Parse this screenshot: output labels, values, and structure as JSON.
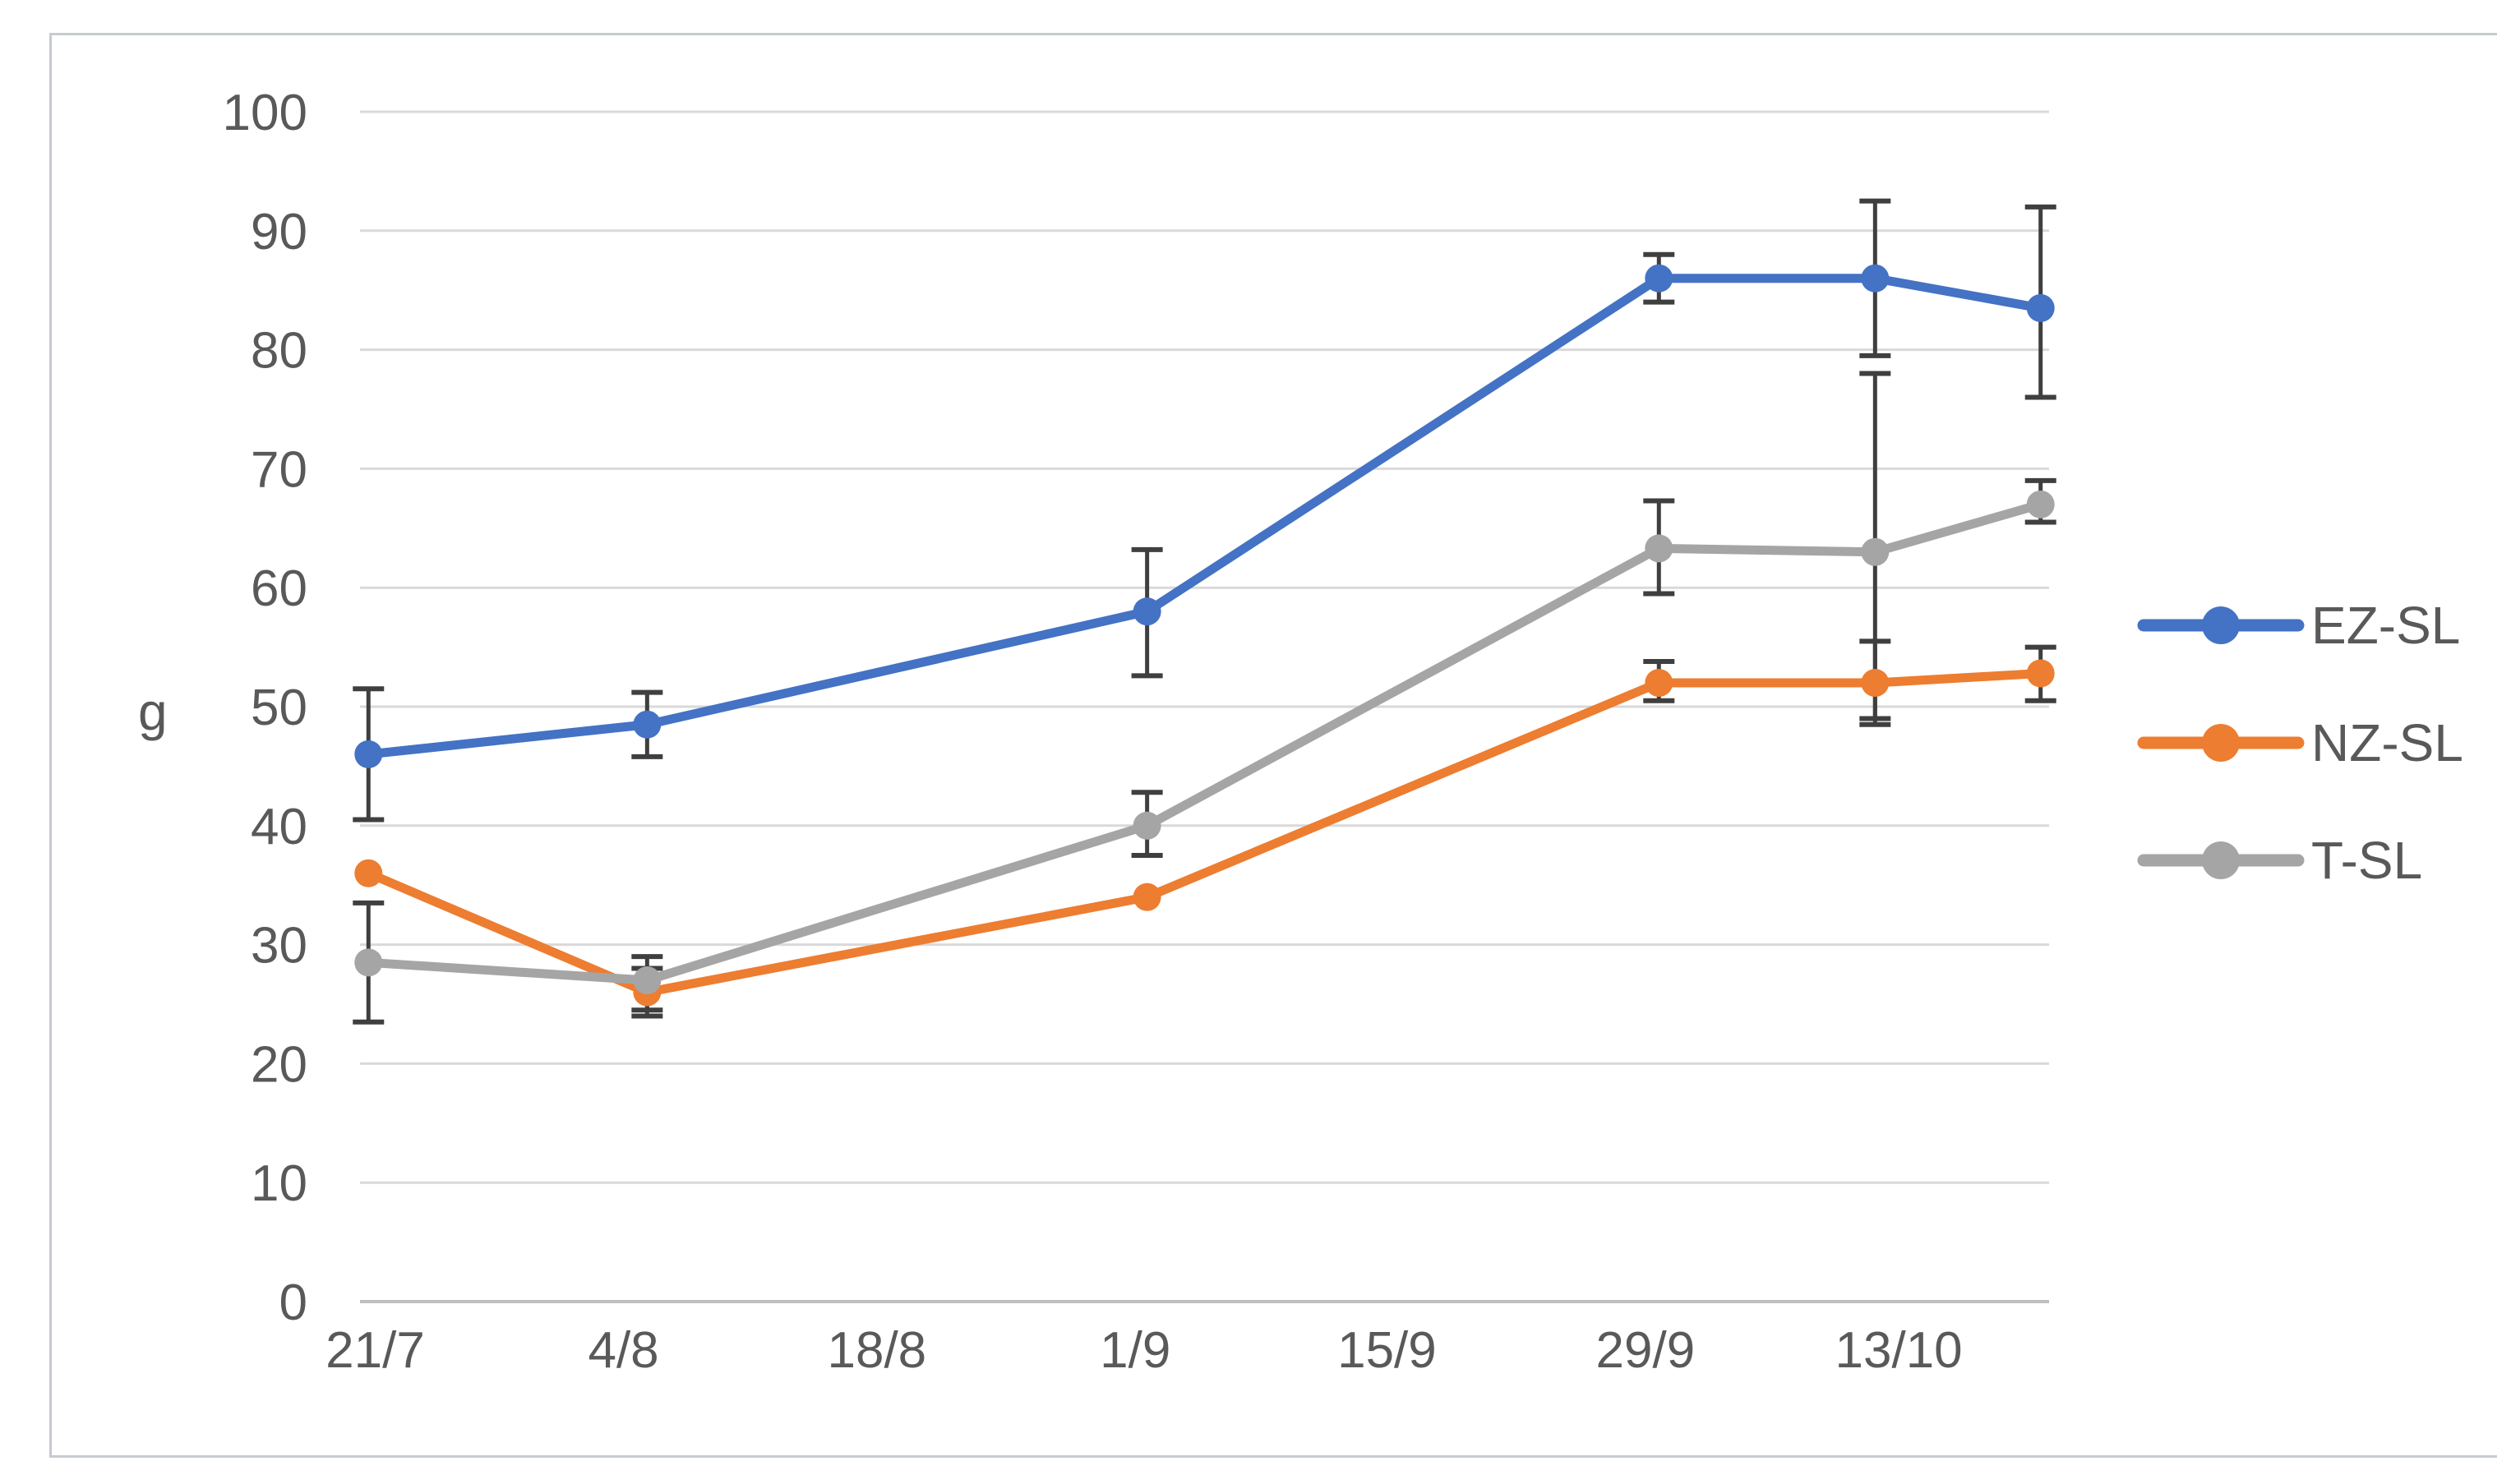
{
  "chart_data": {
    "type": "line",
    "title": "",
    "xlabel": "",
    "ylabel": "g",
    "grid": true,
    "legend_position": "right-middle",
    "y_axis": {
      "min": 0,
      "max": 100,
      "step": 10,
      "tick_labels": [
        "100",
        "90",
        "80",
        "70",
        "60",
        "50",
        "40",
        "30",
        "20",
        "10",
        "0"
      ]
    },
    "x_axis": {
      "tick_labels": [
        "21/7",
        "4/8",
        "18/8",
        "1/9",
        "15/9",
        "29/9",
        "13/10"
      ],
      "tick_positions": [
        0.009,
        0.156,
        0.306,
        0.459,
        0.608,
        0.761,
        0.911
      ]
    },
    "series": [
      {
        "name": "EZ-SL",
        "color": "#4472C4",
        "points": [
          {
            "x": 0.005,
            "date": "21/7",
            "value": 46,
            "err_high": 51.5,
            "err_low": 40.5
          },
          {
            "x": 0.17,
            "date": "4/8",
            "value": 48.5,
            "err_high": 51.2,
            "err_low": 45.8
          },
          {
            "x": 0.466,
            "date": "1/9",
            "value": 58,
            "err_high": 63.2,
            "err_low": 52.6
          },
          {
            "x": 0.769,
            "date": "29/9",
            "value": 86,
            "err_high": 88,
            "err_low": 84
          },
          {
            "x": 0.897,
            "date": "13/10",
            "value": 86,
            "err_high": 92.5,
            "err_low": 79.5
          },
          {
            "x": 0.995,
            "date": "",
            "value": 83.5,
            "err_high": 92,
            "err_low": 76
          }
        ]
      },
      {
        "name": "NZ-SL",
        "color": "#ED7D31",
        "points": [
          {
            "x": 0.005,
            "date": "21/7",
            "value": 36,
            "err_high": null,
            "err_low": null
          },
          {
            "x": 0.17,
            "date": "4/8",
            "value": 26,
            "err_high": 28,
            "err_low": 24
          },
          {
            "x": 0.466,
            "date": "1/9",
            "value": 34,
            "err_high": null,
            "err_low": null
          },
          {
            "x": 0.769,
            "date": "29/9",
            "value": 52,
            "err_high": 53.8,
            "err_low": 50.5
          },
          {
            "x": 0.897,
            "date": "13/10",
            "value": 52,
            "err_high": 55.5,
            "err_low": 48.5
          },
          {
            "x": 0.995,
            "date": "",
            "value": 52.8,
            "err_high": 55,
            "err_low": 50.5
          }
        ]
      },
      {
        "name": "T-SL",
        "color": "#A5A5A5",
        "points": [
          {
            "x": 0.005,
            "date": "21/7",
            "value": 28.5,
            "err_high": 33.5,
            "err_low": 23.5
          },
          {
            "x": 0.17,
            "date": "4/8",
            "value": 27,
            "err_high": 29,
            "err_low": 24.5
          },
          {
            "x": 0.466,
            "date": "1/9",
            "value": 40,
            "err_high": 42.8,
            "err_low": 37.5
          },
          {
            "x": 0.769,
            "date": "29/9",
            "value": 63.3,
            "err_high": 67.3,
            "err_low": 59.5
          },
          {
            "x": 0.897,
            "date": "13/10",
            "value": 63,
            "err_high": 78,
            "err_low": 49
          },
          {
            "x": 0.995,
            "date": "",
            "value": 67,
            "err_high": 69,
            "err_low": 65.5
          }
        ]
      }
    ],
    "style": {
      "gridline_color": "#D9D9D9",
      "axis_line_color": "#BFBFBF",
      "tick_label_color": "#595959",
      "legend_text_color": "#595959",
      "error_bar_color": "#3F3F3F",
      "background": "#FFFFFF",
      "border_color": "#C6CBD0"
    }
  }
}
